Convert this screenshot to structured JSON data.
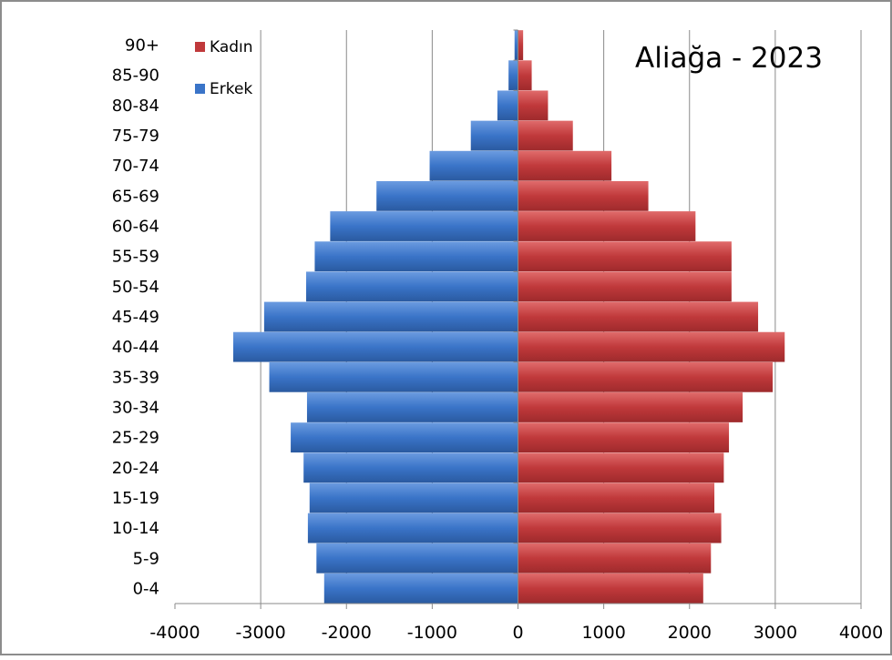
{
  "chart_data": {
    "type": "bar",
    "orientation": "horizontal",
    "layout": "population-pyramid",
    "title": "Aliağa - 2023",
    "categories": [
      "0-4",
      "5-9",
      "10-14",
      "15-19",
      "20-24",
      "25-29",
      "30-34",
      "35-39",
      "40-44",
      "45-49",
      "50-54",
      "55-59",
      "60-64",
      "65-69",
      "70-74",
      "75-79",
      "80-84",
      "85-90",
      "90+"
    ],
    "series": [
      {
        "name": "Kadın",
        "color": "#c0393b",
        "values": [
          2160,
          2250,
          2370,
          2290,
          2400,
          2460,
          2620,
          2970,
          3110,
          2800,
          2490,
          2490,
          2070,
          1520,
          1090,
          640,
          350,
          160,
          60
        ]
      },
      {
        "name": "Erkek",
        "color": "#3a74c8",
        "values": [
          -2260,
          -2350,
          -2450,
          -2430,
          -2500,
          -2650,
          -2460,
          -2900,
          -3320,
          -2960,
          -2470,
          -2370,
          -2190,
          -1650,
          -1030,
          -550,
          -240,
          -110,
          -40
        ]
      }
    ],
    "legend_order": [
      "Kadın",
      "Erkek"
    ],
    "xlim": [
      -4000,
      4000
    ],
    "xticks": [
      "-4000",
      "-3000",
      "-2000",
      "-1000",
      "0",
      "1000",
      "2000",
      "3000",
      "4000"
    ],
    "grid": "vertical",
    "legend_position": "top-left",
    "xlabel": "",
    "ylabel": ""
  }
}
